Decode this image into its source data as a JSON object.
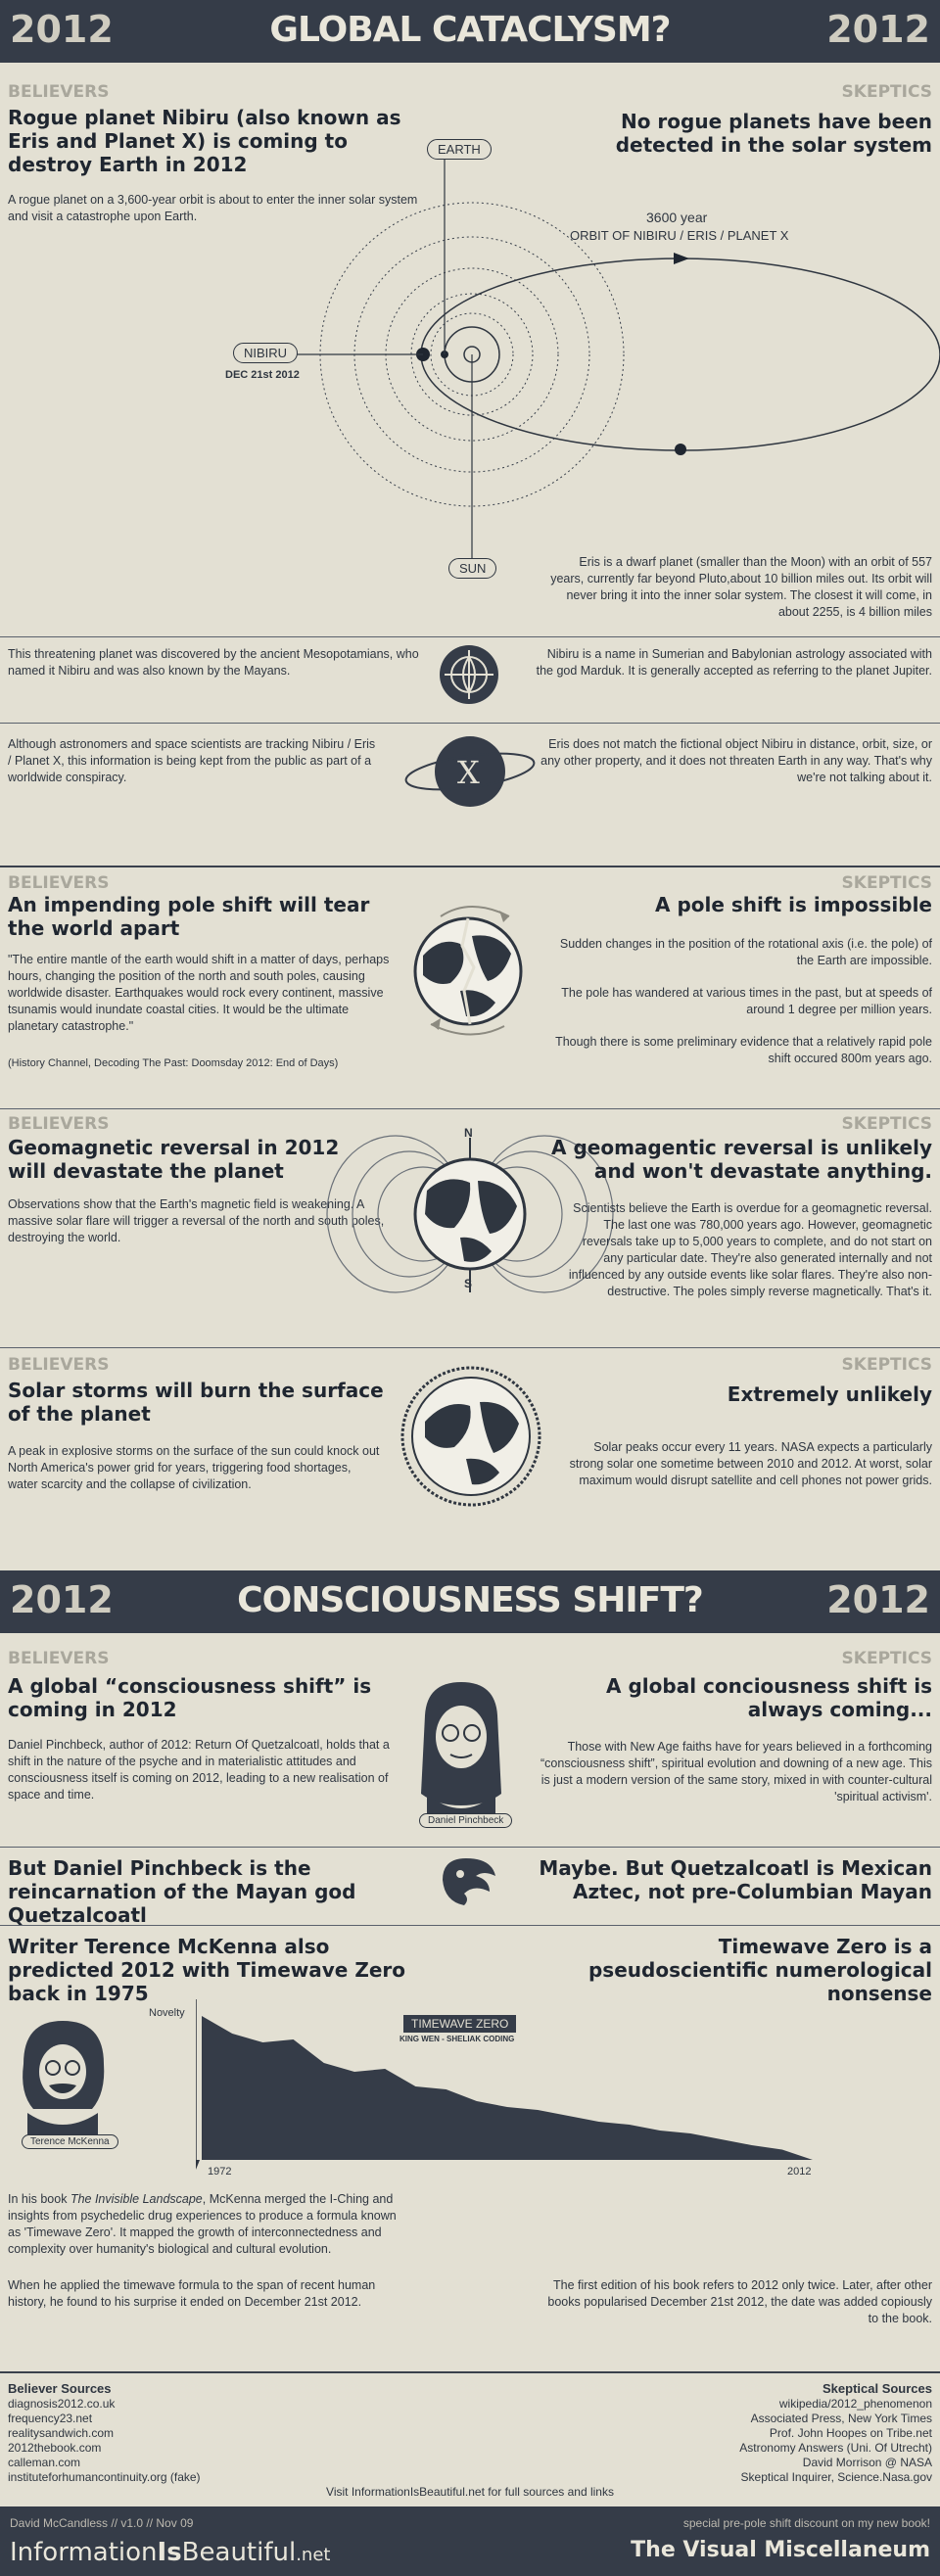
{
  "section1": {
    "year_left": "2012",
    "title": "GLOBAL CATACLYSM?",
    "year_right": "2012"
  },
  "labels": {
    "believers": "BELIEVERS",
    "skeptics": "SKEPTICS"
  },
  "nibiru": {
    "b_head": "Rogue planet Nibiru (also known as Eris and Planet X) is coming to destroy Earth in 2012",
    "b_text": "A rogue planet on a 3,600-year orbit is about to enter the inner solar system and visit a catastrophe upon Earth.",
    "s_head": "No rogue planets have been detected in the solar system",
    "orbit_years": "3600 year",
    "orbit_name": "ORBIT OF NIBIRU / ERIS / PLANET X",
    "earth": "EARTH",
    "nibiru": "NIBIRU",
    "date": "DEC 21st 2012",
    "sun": "SUN",
    "s_text": "Eris is a dwarf planet (smaller than the Moon) with an orbit of 557 years, currently far beyond Pluto,about 10 billion miles out. Its orbit will never bring it into the inner solar system. The closest it will come, in about 2255, is 4 billion miles",
    "b_text2": "This threatening planet was discovered by the ancient Mesopotamians, who named it Nibiru and was also known by the Mayans.",
    "s_text2": "Nibiru is a name in Sumerian and Babylonian astrology associated with the god Marduk. It is generally accepted as referring to the planet Jupiter.",
    "b_text3": "Although astronomers and space scientists are tracking Nibiru / Eris / Planet X, this information is being kept from the public as part of a worldwide conspiracy.",
    "x_symbol": "X",
    "s_text3": "Eris does not match the fictional object Nibiru in distance, orbit, size, or any other property, and it does not threaten Earth in any way.  That's why we're not talking about it."
  },
  "poleshift": {
    "b_head": "An impending pole shift will tear the world apart",
    "b_text": "\"The entire mantle of the earth would shift in a matter of days, perhaps hours, changing the position of the north and south poles, causing worldwide disaster. Earthquakes would rock every continent, massive tsunamis would inundate coastal cities. It would be the ultimate planetary catastrophe.\"",
    "b_cite": "(History Channel, Decoding The Past: Doomsday 2012: End of Days)",
    "s_head": "A pole shift is impossible",
    "s_text1": "Sudden changes in the position of the rotational axis (i.e. the pole) of the Earth are impossible.",
    "s_text2": "The pole has wandered at various times in the past, but at speeds of around 1 degree per million years.",
    "s_text3": "Though there is some preliminary evidence that a relatively rapid pole shift occured 800m years ago."
  },
  "magnetic": {
    "b_head": "Geomagnetic reversal in 2012 will devastate the planet",
    "b_text": "Observations show that the Earth's magnetic field is weakening. A massive solar flare will trigger a reversal of the north and south poles, destroying the world.",
    "n": "N",
    "s": "S",
    "s_head": "A geomagentic reversal is unlikely and won't devastate anything.",
    "s_text": "Scientists believe the Earth is overdue for a geomagnetic reversal. The last one was 780,000 years ago. However, geomagnetic reversals take up to 5,000 years to complete, and do not start on any particular date. They're also generated internally and not influenced by any outside events like solar flares. They're also non-destructive. The poles simply reverse magnetically. That's it."
  },
  "solar": {
    "b_head": "Solar storms will burn the surface of the planet",
    "b_text": "A peak in explosive storms on the surface of the sun could knock out North America's power grid for years, triggering food shortages, water scarcity and the collapse of civilization.",
    "s_head": "Extremely unlikely",
    "s_text": "Solar peaks occur every 11 years. NASA expects a particularly strong solar one sometime between 2010 and 2012. At worst, solar maximum would disrupt satellite and cell phones not power grids."
  },
  "section2": {
    "year_left": "2012",
    "title": "CONSCIOUSNESS SHIFT?",
    "year_right": "2012"
  },
  "consciousness": {
    "b_head": "A global “consciousness shift” is coming in 2012",
    "b_text": "Daniel Pinchbeck, author of 2012: Return Of Quetzalcoatl, holds that a shift in the nature of the psyche and in materialistic attitudes and consciousness itself is coming on 2012, leading to a new realisation of space and time.",
    "portrait": "Daniel Pinchbeck",
    "s_head": "A global conciousness shift is always coming...",
    "s_text": "Those with New Age faiths have for years believed in a forthcoming “consciousness shift”, spiritual evolution and downing of a new age. This is just a modern version of the same story, mixed in with counter-cultural 'spiritual activism'.",
    "b_head2": "But Daniel Pinchbeck is the reincarnation of the Mayan god Quetzalcoatl",
    "s_head2": "Maybe. But Quetzalcoatl is Mexican Aztec, not pre-Columbian Mayan"
  },
  "timewave": {
    "b_head": "Writer Terence McKenna also predicted 2012 with Timewave Zero back in 1975",
    "s_head": "Timewave Zero is a pseudoscientific numerological nonsense",
    "portrait": "Terence McKenna",
    "b_text_pre": "In his book ",
    "b_book": "The Invisible Landscape",
    "b_text_post": ", McKenna merged the I-Ching and insights from psychedelic drug experiences to produce a formula known as 'Timewave Zero'. It mapped the growth of interconnectedness and complexity over humanity's biological and cultural evolution.",
    "b_text2": "When he applied the timewave formula to the span of recent human history, he found to his surprise it ended on December 21st 2012.",
    "s_text": "The first edition of his book refers to 2012 only twice. Later, after other books popularised December 21st 2012, the date was added copiously to the book."
  },
  "chart_data": {
    "type": "area",
    "title": "TIMEWAVE ZERO",
    "subtitle": "KING WEN - SHELIAK CODING",
    "ylabel": "Novelty",
    "x_start": "1972",
    "x_end": "2012",
    "x": [
      1972,
      1974,
      1976,
      1978,
      1980,
      1982,
      1984,
      1986,
      1988,
      1990,
      1992,
      1994,
      1996,
      1998,
      2000,
      2002,
      2004,
      2006,
      2008,
      2010,
      2012
    ],
    "values": [
      0.98,
      0.86,
      0.8,
      0.82,
      0.66,
      0.6,
      0.62,
      0.5,
      0.48,
      0.4,
      0.36,
      0.34,
      0.3,
      0.26,
      0.24,
      0.2,
      0.18,
      0.14,
      0.1,
      0.07,
      0.0
    ],
    "ylim": [
      0,
      1
    ],
    "color": "#353c48"
  },
  "sources": {
    "b_title": "Believer Sources",
    "b_items": [
      "diagnosis2012.co.uk",
      "frequency23.net",
      "realitysandwich.com",
      "2012thebook.com",
      "calleman.com",
      "instituteforhumancontinuity.org (fake)"
    ],
    "s_title": "Skeptical Sources",
    "s_items": [
      "wikipedia/2012_phenomenon",
      "Associated Press, New York Times",
      "Prof. John Hoopes on Tribe.net",
      "Astronomy Answers (Uni. Of Utrecht)",
      "David Morrison @ NASA",
      "Skeptical Inquirer, Science.Nasa.gov"
    ],
    "visit": "Visit InformationIsBeautiful.net for full sources and links"
  },
  "footer": {
    "credit": "David McCandless // v1.0 // Nov 09",
    "site_a": "Information",
    "site_b": "Is",
    "site_c": "Beautiful",
    "site_d": ".net",
    "promo": "special pre-pole shift discount on my new book!",
    "book": "The Visual Miscellaneum"
  },
  "colors": {
    "dark": "#353c48",
    "paper": "#e3e0d3",
    "label": "#a9a79c"
  }
}
